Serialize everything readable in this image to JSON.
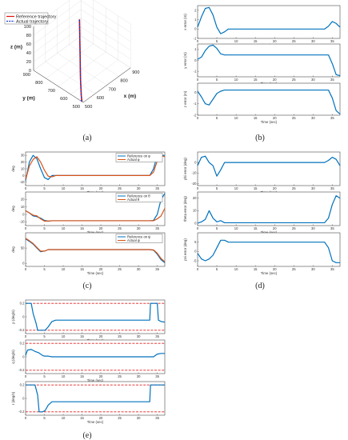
{
  "colors": {
    "blue": "#0072BD",
    "orange": "#D95319",
    "red_ref": "#e01010",
    "dash_blue": "#1a3cc8",
    "limit_red": "#e21f1f"
  },
  "captions": [
    "(a)",
    "(b)",
    "(c)",
    "(d)",
    "(e)"
  ],
  "chart_data": [
    {
      "id": "a",
      "type": "line",
      "title": "",
      "axes": {
        "x": {
          "label": "x (m)",
          "ticks": [
            "500",
            "600",
            "700",
            "800",
            "900"
          ]
        },
        "y": {
          "label": "y (m)",
          "ticks": [
            "500",
            "600",
            "700",
            "800",
            "900"
          ]
        },
        "z": {
          "label": "z (m)",
          "ticks": [
            "0",
            "20",
            "40",
            "60",
            "80",
            "100"
          ]
        }
      },
      "grid": true,
      "legend": "top-left",
      "series": [
        {
          "name": "Reference trajectory",
          "color": "#e01010",
          "style": "solid",
          "points": [
            [
              500,
              510,
              0
            ],
            [
              505,
              520,
              10
            ],
            [
              540,
              560,
              35
            ],
            [
              600,
              620,
              60
            ],
            [
              680,
              700,
              85
            ],
            [
              720,
              740,
              100
            ],
            [
              725,
              745,
              100
            ]
          ]
        },
        {
          "name": "Actual trajectory",
          "color": "#1a3cc8",
          "style": "dashed",
          "points": [
            [
              498,
              512,
              0
            ],
            [
              506,
              522,
              11
            ],
            [
              541,
              561,
              36
            ],
            [
              601,
              621,
              61
            ],
            [
              681,
              701,
              86
            ],
            [
              722,
              742,
              101
            ],
            [
              727,
              747,
              100
            ]
          ]
        }
      ]
    },
    {
      "id": "b",
      "type": "line",
      "xlabel": "Time (sec)",
      "xlim": [
        0,
        37
      ],
      "xticks": [
        0,
        5,
        10,
        15,
        20,
        25,
        30,
        35
      ],
      "subplots": [
        {
          "ylabel": "x error (m)",
          "ylim": [
            -1,
            2.5
          ],
          "yticks": [
            -1,
            0,
            1,
            2
          ],
          "series": [
            {
              "name": "",
              "color": "#0072BD",
              "x": [
                0,
                1,
                2,
                3,
                4,
                5,
                6,
                7,
                8,
                10,
                20,
                33,
                34,
                35,
                36,
                37
              ],
              "y": [
                0.2,
                1.3,
                2.2,
                2.3,
                1.5,
                0.2,
                -0.5,
                -0.3,
                0,
                0,
                0,
                0,
                0.3,
                0.8,
                0.6,
                0.2
              ]
            }
          ]
        },
        {
          "ylabel": "y error (m)",
          "ylim": [
            -1.5,
            1.5
          ],
          "yticks": [
            -1,
            0,
            1
          ],
          "series": [
            {
              "name": "",
              "color": "#0072BD",
              "x": [
                0,
                1,
                2,
                3,
                4,
                5,
                6,
                7,
                8,
                10,
                33,
                34,
                35,
                36,
                37
              ],
              "y": [
                0.1,
                0.3,
                0.9,
                1.3,
                1.4,
                1.1,
                0.6,
                0.5,
                0.5,
                0.5,
                0.5,
                0.5,
                -0.3,
                -1.3,
                -1.4
              ]
            }
          ]
        },
        {
          "ylabel": "z error (m)",
          "ylim": [
            -2,
            0.8
          ],
          "yticks": [
            -2,
            -1,
            0
          ],
          "series": [
            {
              "name": "",
              "color": "#0072BD",
              "x": [
                0,
                1,
                2,
                3,
                4,
                5,
                6,
                7,
                8,
                10,
                33,
                34,
                35,
                36,
                37
              ],
              "y": [
                0.1,
                -0.4,
                -1.0,
                -1.1,
                -0.6,
                -0.1,
                0.1,
                0.2,
                0.2,
                0.2,
                0.2,
                0.2,
                -0.5,
                -1.6,
                -1.9
              ]
            }
          ]
        }
      ]
    },
    {
      "id": "c",
      "type": "line",
      "xlabel": "Time (sec)",
      "xlim": [
        0,
        37
      ],
      "xticks": [
        0,
        5,
        10,
        15,
        20,
        25,
        30,
        35
      ],
      "subplots": [
        {
          "ylabel": "deg",
          "ylim": [
            -15,
            35
          ],
          "yticks": [
            -10,
            0,
            10,
            20,
            30
          ],
          "series": [
            {
              "name": "Reference on φ",
              "color": "#0072BD",
              "x": [
                0,
                1,
                2,
                3,
                4,
                5,
                6,
                7,
                8,
                10,
                33,
                34,
                35,
                36,
                37
              ],
              "y": [
                -8,
                20,
                30,
                25,
                10,
                -3,
                -6,
                0,
                0,
                0,
                0,
                10,
                30,
                30,
                30
              ]
            },
            {
              "name": "Actual φ",
              "color": "#D95319",
              "x": [
                0,
                1,
                2,
                3,
                4,
                5,
                6,
                7,
                8,
                10,
                33,
                34,
                35,
                36,
                37
              ],
              "y": [
                -6,
                14,
                24,
                28,
                20,
                8,
                -1,
                -2,
                0,
                0,
                0,
                5,
                22,
                30,
                28
              ]
            }
          ]
        },
        {
          "ylabel": "deg",
          "ylim": [
            -15,
            30
          ],
          "yticks": [
            -10,
            0,
            10,
            20
          ],
          "series": [
            {
              "name": "Reference on θ",
              "color": "#0072BD",
              "x": [
                0,
                1,
                2,
                3,
                4,
                5,
                6,
                7,
                8,
                10,
                33,
                34,
                35,
                36,
                37
              ],
              "y": [
                5,
                2,
                -2,
                -3,
                -5,
                -8,
                -9,
                -8.5,
                -8.5,
                -8.5,
                -8.5,
                -8,
                0,
                20,
                28
              ]
            },
            {
              "name": "Actual θ",
              "color": "#D95319",
              "x": [
                0,
                1,
                2,
                3,
                4,
                5,
                6,
                7,
                8,
                10,
                33,
                34,
                35,
                36,
                37
              ],
              "y": [
                5,
                2,
                -1,
                -2,
                -6,
                -9,
                -9,
                -8.5,
                -8.5,
                -8.5,
                -8.5,
                -8.5,
                -6,
                -2,
                8
              ]
            }
          ]
        },
        {
          "ylabel": "deg",
          "ylim": [
            -10,
            100
          ],
          "yticks": [
            0,
            50
          ],
          "series": [
            {
              "name": "Reference on ψ",
              "color": "#0072BD",
              "x": [
                0,
                1,
                2,
                3,
                4,
                5,
                6,
                7,
                8,
                10,
                33,
                34,
                35,
                36,
                37
              ],
              "y": [
                80,
                72,
                63,
                50,
                38,
                40,
                45,
                45,
                45,
                45,
                45,
                43,
                30,
                12,
                2
              ]
            },
            {
              "name": "Actual ψ",
              "color": "#D95319",
              "x": [
                0,
                1,
                2,
                3,
                4,
                5,
                6,
                7,
                8,
                10,
                33,
                34,
                35,
                36,
                37
              ],
              "y": [
                82,
                74,
                65,
                52,
                40,
                40,
                45,
                45,
                45,
                45,
                45,
                44,
                33,
                16,
                5
              ]
            }
          ]
        }
      ]
    },
    {
      "id": "d",
      "type": "line",
      "xlabel": "Time (sec)",
      "xlim": [
        0,
        37
      ],
      "xticks": [
        0,
        5,
        10,
        15,
        20,
        25,
        30,
        35
      ],
      "subplots": [
        {
          "ylabel": "phi error (deg)",
          "ylim": [
            -22,
            10
          ],
          "yticks": [
            -20,
            -10,
            0
          ],
          "series": [
            {
              "name": "",
              "color": "#0072BD",
              "x": [
                0,
                1,
                2,
                3,
                4,
                5,
                6,
                7,
                8,
                10,
                32,
                33,
                34,
                35,
                36,
                37
              ],
              "y": [
                -3,
                5,
                6,
                0,
                -3,
                -13,
                -7,
                0,
                0,
                0,
                0,
                0,
                2,
                5,
                3,
                -3
              ]
            }
          ]
        },
        {
          "ylabel": "theta error (deg)",
          "ylim": [
            -2,
            25
          ],
          "yticks": [
            0,
            10,
            20
          ],
          "series": [
            {
              "name": "",
              "color": "#0072BD",
              "x": [
                0,
                1,
                2,
                3,
                4,
                5,
                6,
                7,
                8,
                10,
                32,
                33,
                34,
                35,
                36,
                37
              ],
              "y": [
                0,
                1,
                3,
                10,
                4,
                1,
                2,
                0.3,
                0.3,
                0.3,
                0.3,
                0.3,
                4,
                15,
                22,
                20
              ]
            }
          ]
        },
        {
          "ylabel": "psi error (deg)",
          "ylim": [
            -8,
            10
          ],
          "yticks": [
            -5,
            0,
            5
          ],
          "series": [
            {
              "name": "",
              "color": "#0072BD",
              "x": [
                0,
                1,
                2,
                3,
                4,
                5,
                6,
                7,
                8,
                10,
                32,
                33,
                34,
                35,
                36,
                37
              ],
              "y": [
                -1,
                -4,
                -5,
                -4,
                -2,
                2,
                6,
                6,
                5,
                5,
                5,
                5,
                2,
                -5,
                -6,
                -6
              ]
            }
          ]
        }
      ]
    },
    {
      "id": "e",
      "type": "line",
      "xlabel": "Time (sec)",
      "xlim": [
        0,
        37
      ],
      "xticks": [
        0,
        5,
        10,
        15,
        20,
        25,
        30,
        35
      ],
      "subplots": [
        {
          "ylabel": "p (deg/s)",
          "ylim": [
            -0.25,
            0.25
          ],
          "yticks": [
            -0.2,
            0,
            0.2
          ],
          "limits": [
            0.2,
            -0.2
          ],
          "series": [
            {
              "name": "",
              "color": "#0072BD",
              "x": [
                0,
                1.5,
                2,
                2.8,
                3.2,
                3.8,
                4.5,
                5.2,
                6,
                7,
                8,
                10,
                33,
                33.2,
                35,
                35.3,
                36,
                37
              ],
              "y": [
                0.2,
                0.2,
                0.05,
                -0.1,
                -0.2,
                -0.2,
                -0.2,
                -0.2,
                -0.15,
                -0.07,
                -0.05,
                -0.05,
                -0.05,
                0.2,
                0.2,
                -0.05,
                -0.07,
                -0.08
              ]
            }
          ]
        },
        {
          "ylabel": "q (deg/s)",
          "ylim": [
            -0.25,
            0.25
          ],
          "yticks": [
            -0.2,
            0,
            0.2
          ],
          "limits": [
            0.2,
            -0.2
          ],
          "series": [
            {
              "name": "",
              "color": "#0072BD",
              "x": [
                0,
                0.5,
                1.5,
                2.5,
                3.5,
                4.5,
                5,
                6,
                7,
                8,
                10,
                33,
                34,
                35,
                36,
                37
              ],
              "y": [
                0.02,
                0.1,
                0.11,
                0.08,
                0.06,
                0.02,
                0.01,
                0.01,
                0,
                0,
                0,
                0,
                0,
                0.04,
                0.05,
                0.05
              ]
            }
          ]
        },
        {
          "ylabel": "r (deg/s)",
          "ylim": [
            -0.25,
            0.25
          ],
          "yticks": [
            -0.2,
            0,
            0.2
          ],
          "limits": [
            0.2,
            -0.2
          ],
          "series": [
            {
              "name": "",
              "color": "#0072BD",
              "x": [
                0,
                0.5,
                2.5,
                3.2,
                3.6,
                4.5,
                5.2,
                6,
                7,
                8,
                10,
                33,
                33.2,
                35,
                36,
                37
              ],
              "y": [
                0.2,
                0.2,
                0.2,
                0.05,
                -0.2,
                -0.2,
                -0.18,
                -0.1,
                -0.05,
                -0.05,
                -0.05,
                -0.05,
                0.2,
                0.2,
                0.2,
                0.2
              ]
            }
          ]
        }
      ]
    }
  ]
}
